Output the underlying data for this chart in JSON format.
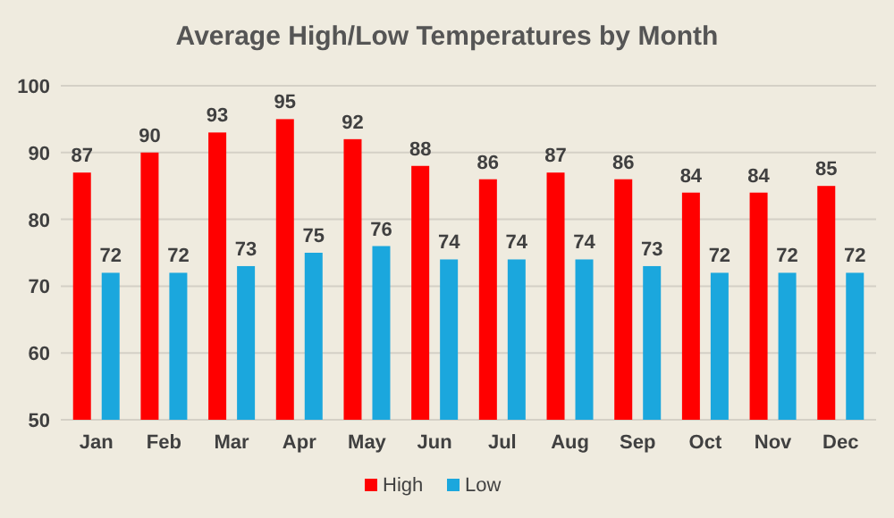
{
  "chart_data": {
    "type": "bar",
    "title": "Average High/Low Temperatures by Month",
    "categories": [
      "Jan",
      "Feb",
      "Mar",
      "Apr",
      "May",
      "Jun",
      "Jul",
      "Aug",
      "Sep",
      "Oct",
      "Nov",
      "Dec"
    ],
    "series": [
      {
        "name": "High",
        "color": "#ff0000",
        "values": [
          87,
          90,
          93,
          95,
          92,
          88,
          86,
          87,
          86,
          84,
          84,
          85
        ]
      },
      {
        "name": "Low",
        "color": "#1ba7dd",
        "values": [
          72,
          72,
          73,
          75,
          76,
          74,
          74,
          74,
          73,
          72,
          72,
          72
        ]
      }
    ],
    "ylim": [
      50,
      100
    ],
    "yticks": [
      50,
      60,
      70,
      80,
      90,
      100
    ],
    "grid": "y",
    "legend": "bottom",
    "data_labels": true
  }
}
